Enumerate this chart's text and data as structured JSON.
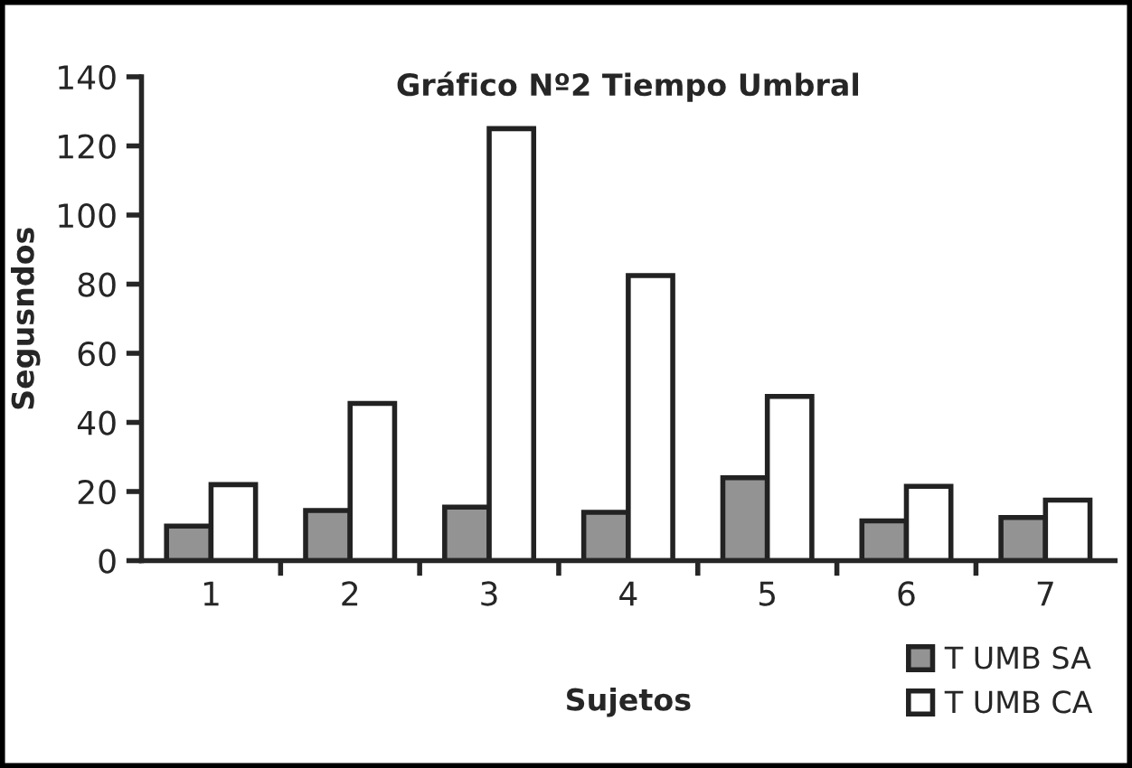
{
  "chart_data": {
    "type": "bar",
    "title": "Gráfico Nº2 Tiempo Umbral",
    "xlabel": "Sujetos",
    "ylabel": "Segusndos",
    "categories": [
      "1",
      "2",
      "3",
      "4",
      "5",
      "6",
      "7"
    ],
    "series": [
      {
        "name": "T UMB SA",
        "color": "#939393",
        "values": [
          10,
          14.5,
          15.5,
          14,
          24,
          11.5,
          12.5
        ]
      },
      {
        "name": "T UMB CA",
        "color": "#ffffff",
        "values": [
          22,
          45.5,
          125,
          82.5,
          47.5,
          21.5,
          17.5
        ]
      }
    ],
    "ylim": [
      0,
      140
    ],
    "yticks": [
      0,
      20,
      40,
      60,
      80,
      100,
      120,
      140
    ],
    "grid": false,
    "legend": "bottom right"
  }
}
